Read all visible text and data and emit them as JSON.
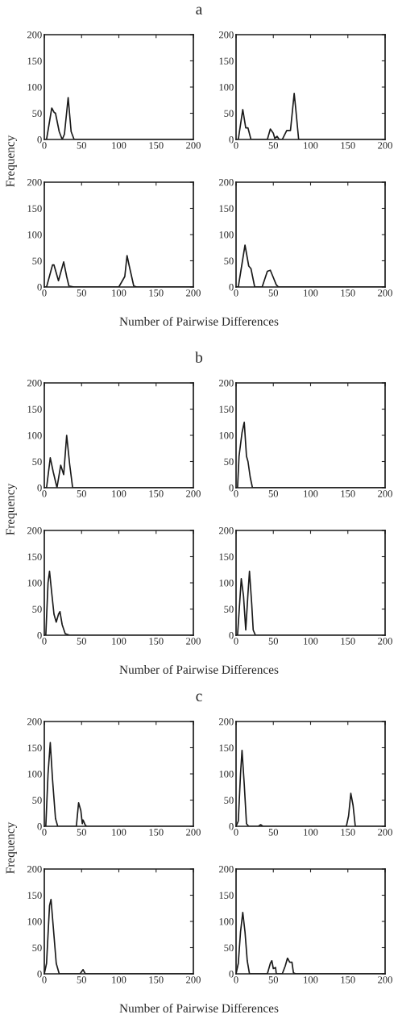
{
  "chart_data": [
    {
      "type": "line",
      "title": "a",
      "ylabel": "Frequency",
      "x": [
        0,
        3,
        10,
        13,
        15,
        20,
        24,
        27,
        32,
        36,
        40,
        200
      ],
      "series": [
        {
          "color": "#1a1a1a",
          "values": [
            0,
            0,
            60,
            52,
            50,
            15,
            0,
            10,
            80,
            15,
            0,
            0
          ]
        }
      ],
      "xlim": [
        0,
        200
      ],
      "ylim": [
        0,
        200
      ],
      "xticks": [
        0,
        50,
        100,
        150,
        200
      ],
      "yticks": [
        0,
        50,
        100,
        150,
        200
      ]
    },
    {
      "type": "line",
      "x": [
        0,
        3,
        9,
        13,
        16,
        20,
        42,
        46,
        50,
        52,
        55,
        58,
        62,
        68,
        73,
        78,
        80,
        84,
        200
      ],
      "series": [
        {
          "color": "#1a1a1a",
          "values": [
            0,
            0,
            57,
            22,
            22,
            0,
            0,
            20,
            12,
            2,
            6,
            0,
            0,
            17,
            17,
            88,
            60,
            0,
            0
          ]
        }
      ],
      "xlim": [
        0,
        200
      ],
      "ylim": [
        0,
        200
      ],
      "xticks": [
        0,
        50,
        100,
        150,
        200
      ],
      "yticks": [
        0,
        50,
        100,
        150,
        200
      ]
    },
    {
      "type": "line",
      "xlabel": "Number of Pairwise Differences",
      "x": [
        0,
        3,
        11,
        13,
        19,
        26,
        30,
        33,
        40,
        100,
        108,
        111,
        114,
        120,
        124,
        200
      ],
      "series": [
        {
          "color": "#1a1a1a",
          "values": [
            0,
            0,
            42,
            42,
            12,
            48,
            20,
            2,
            0,
            0,
            20,
            60,
            40,
            2,
            0,
            0
          ]
        }
      ],
      "xlim": [
        0,
        200
      ],
      "ylim": [
        0,
        200
      ],
      "xticks": [
        0,
        50,
        100,
        150,
        200
      ],
      "yticks": [
        0,
        50,
        100,
        150,
        200
      ]
    },
    {
      "type": "line",
      "x": [
        0,
        3,
        12,
        17,
        20,
        25,
        35,
        42,
        46,
        50,
        54,
        57,
        200
      ],
      "series": [
        {
          "color": "#1a1a1a",
          "values": [
            0,
            0,
            80,
            40,
            35,
            0,
            0,
            30,
            32,
            18,
            4,
            0,
            0
          ]
        }
      ],
      "xlim": [
        0,
        200
      ],
      "ylim": [
        0,
        200
      ],
      "xticks": [
        0,
        50,
        100,
        150,
        200
      ],
      "yticks": [
        0,
        50,
        100,
        150,
        200
      ]
    },
    {
      "type": "line",
      "title": "b",
      "ylabel": "Frequency",
      "x": [
        0,
        3,
        8,
        12,
        17,
        22,
        26,
        30,
        34,
        38,
        200
      ],
      "series": [
        {
          "color": "#1a1a1a",
          "values": [
            0,
            0,
            57,
            30,
            0,
            43,
            25,
            100,
            45,
            0,
            0
          ]
        }
      ],
      "xlim": [
        0,
        200
      ],
      "ylim": [
        0,
        200
      ],
      "xticks": [
        0,
        50,
        100,
        150,
        200
      ],
      "yticks": [
        0,
        50,
        100,
        150,
        200
      ]
    },
    {
      "type": "line",
      "x": [
        0,
        2,
        4,
        8,
        11,
        14,
        16,
        19,
        22,
        200
      ],
      "series": [
        {
          "color": "#1a1a1a",
          "values": [
            0,
            0,
            60,
            105,
            125,
            60,
            50,
            20,
            0,
            0
          ]
        }
      ],
      "xlim": [
        0,
        200
      ],
      "ylim": [
        0,
        200
      ],
      "xticks": [
        0,
        50,
        100,
        150,
        200
      ],
      "yticks": [
        0,
        50,
        100,
        150,
        200
      ]
    },
    {
      "type": "line",
      "xlabel": "Number of Pairwise Differences",
      "x": [
        0,
        2,
        5,
        7,
        10,
        13,
        16,
        19,
        21,
        24,
        28,
        34,
        200
      ],
      "series": [
        {
          "color": "#1a1a1a",
          "values": [
            0,
            0,
            100,
            122,
            80,
            40,
            25,
            40,
            45,
            20,
            3,
            0,
            0
          ]
        }
      ],
      "xlim": [
        0,
        200
      ],
      "ylim": [
        0,
        200
      ],
      "xticks": [
        0,
        50,
        100,
        150,
        200
      ],
      "yticks": [
        0,
        50,
        100,
        150,
        200
      ]
    },
    {
      "type": "line",
      "x": [
        0,
        2,
        7,
        10,
        13,
        16,
        18,
        21,
        23,
        26,
        200
      ],
      "series": [
        {
          "color": "#1a1a1a",
          "values": [
            0,
            0,
            108,
            75,
            10,
            80,
            122,
            60,
            10,
            0,
            0
          ]
        }
      ],
      "xlim": [
        0,
        200
      ],
      "ylim": [
        0,
        200
      ],
      "xticks": [
        0,
        50,
        100,
        150,
        200
      ],
      "yticks": [
        0,
        50,
        100,
        150,
        200
      ]
    },
    {
      "type": "line",
      "title": "c",
      "ylabel": "Frequency",
      "x": [
        0,
        2,
        5,
        8,
        11,
        15,
        18,
        43,
        46,
        49,
        51,
        52,
        55,
        57,
        200
      ],
      "series": [
        {
          "color": "#1a1a1a",
          "values": [
            0,
            0,
            100,
            160,
            90,
            15,
            0,
            0,
            45,
            30,
            5,
            12,
            2,
            0,
            0
          ]
        }
      ],
      "xlim": [
        0,
        200
      ],
      "ylim": [
        0,
        200
      ],
      "xticks": [
        0,
        50,
        100,
        150,
        200
      ],
      "yticks": [
        0,
        50,
        100,
        150,
        200
      ]
    },
    {
      "type": "line",
      "x": [
        0,
        3,
        6,
        8,
        11,
        14,
        17,
        30,
        33,
        36,
        148,
        151,
        154,
        157,
        160,
        200
      ],
      "series": [
        {
          "color": "#1a1a1a",
          "values": [
            0,
            10,
            100,
            145,
            80,
            5,
            0,
            0,
            3,
            0,
            0,
            20,
            63,
            40,
            0,
            0
          ]
        }
      ],
      "xlim": [
        0,
        200
      ],
      "ylim": [
        0,
        200
      ],
      "xticks": [
        0,
        50,
        100,
        150,
        200
      ],
      "yticks": [
        0,
        50,
        100,
        150,
        200
      ]
    },
    {
      "type": "line",
      "xlabel": "Number of Pairwise Differences",
      "x": [
        0,
        3,
        7,
        9,
        12,
        16,
        20,
        48,
        52,
        55,
        200
      ],
      "series": [
        {
          "color": "#1a1a1a",
          "values": [
            0,
            20,
            130,
            142,
            90,
            20,
            0,
            0,
            8,
            0,
            0
          ]
        }
      ],
      "xlim": [
        0,
        200
      ],
      "ylim": [
        0,
        200
      ],
      "xticks": [
        0,
        50,
        100,
        150,
        200
      ],
      "yticks": [
        0,
        50,
        100,
        150,
        200
      ]
    },
    {
      "type": "line",
      "x": [
        0,
        3,
        6,
        9,
        12,
        15,
        18,
        42,
        46,
        48,
        50,
        53,
        54,
        62,
        66,
        69,
        72,
        75,
        77,
        80,
        200
      ],
      "series": [
        {
          "color": "#1a1a1a",
          "values": [
            0,
            20,
            80,
            117,
            80,
            25,
            0,
            0,
            20,
            25,
            10,
            12,
            0,
            0,
            15,
            30,
            22,
            22,
            2,
            0,
            0
          ]
        }
      ],
      "xlim": [
        0,
        200
      ],
      "ylim": [
        0,
        200
      ],
      "xticks": [
        0,
        50,
        100,
        150,
        200
      ],
      "yticks": [
        0,
        50,
        100,
        150,
        200
      ]
    }
  ]
}
